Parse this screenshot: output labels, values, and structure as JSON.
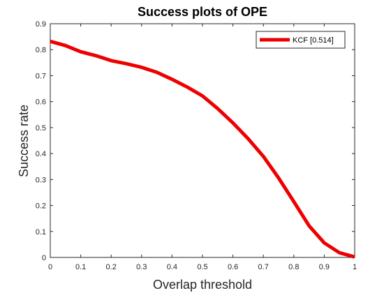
{
  "chart_data": {
    "type": "line",
    "title": "Success plots of OPE",
    "xlabel": "Overlap threshold",
    "ylabel": "Success rate",
    "xlim": [
      0,
      1
    ],
    "ylim": [
      0,
      0.9
    ],
    "xticks": [
      0,
      0.1,
      0.2,
      0.3,
      0.4,
      0.5,
      0.6,
      0.7,
      0.8,
      0.9,
      1
    ],
    "xtick_labels": [
      "0",
      "0.1",
      "0.2",
      "0.3",
      "0.4",
      "0.5",
      "0.6",
      "0.7",
      "0.8",
      "0.9",
      "1"
    ],
    "yticks": [
      0,
      0.1,
      0.2,
      0.3,
      0.4,
      0.5,
      0.6,
      0.7,
      0.8,
      0.9
    ],
    "ytick_labels": [
      "0",
      "0.1",
      "0.2",
      "0.3",
      "0.4",
      "0.5",
      "0.6",
      "0.7",
      "0.8",
      "0.9"
    ],
    "grid": false,
    "legend_position": "top-right",
    "series": [
      {
        "name": "KCF [0.514]",
        "color": "#ee0000",
        "x": [
          0,
          0.05,
          0.1,
          0.15,
          0.2,
          0.25,
          0.3,
          0.35,
          0.4,
          0.45,
          0.5,
          0.55,
          0.6,
          0.65,
          0.7,
          0.75,
          0.8,
          0.85,
          0.9,
          0.95,
          1
        ],
        "y": [
          0.832,
          0.816,
          0.792,
          0.777,
          0.758,
          0.746,
          0.732,
          0.713,
          0.686,
          0.656,
          0.622,
          0.573,
          0.518,
          0.457,
          0.389,
          0.306,
          0.215,
          0.122,
          0.056,
          0.018,
          0.002
        ]
      }
    ]
  }
}
